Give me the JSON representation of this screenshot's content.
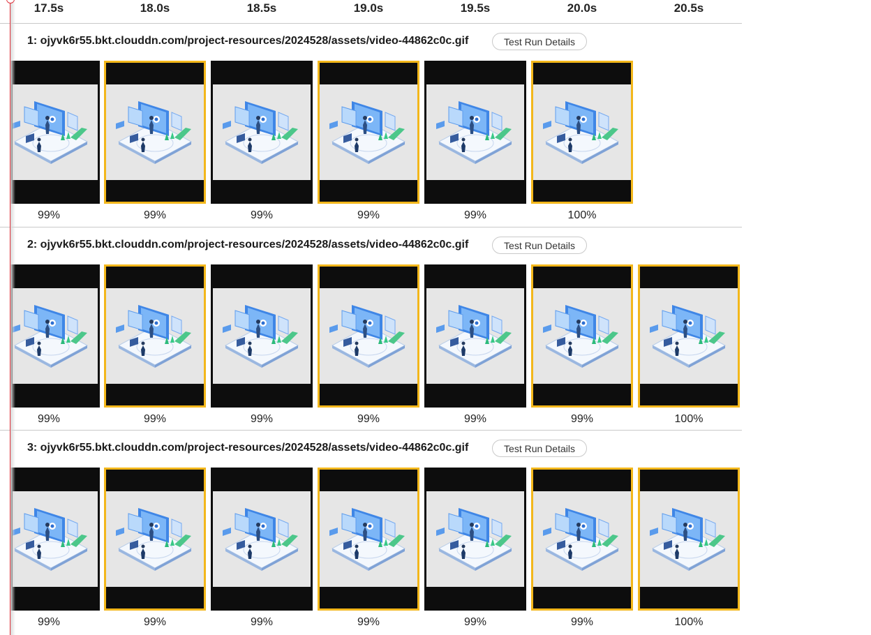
{
  "time_header": {
    "ticks": [
      "17.5s",
      "18.0s",
      "18.5s",
      "19.0s",
      "19.5s",
      "20.0s",
      "20.5s"
    ]
  },
  "runs": [
    {
      "title": "1: ojyvk6r55.bkt.clouddn.com/project-resources/2024528/assets/video-44862c0c.gif",
      "details_label": "Test Run Details",
      "frames": [
        {
          "percent": "99%",
          "changed": false
        },
        {
          "percent": "99%",
          "changed": true
        },
        {
          "percent": "99%",
          "changed": false
        },
        {
          "percent": "99%",
          "changed": true
        },
        {
          "percent": "99%",
          "changed": false
        },
        {
          "percent": "100%",
          "changed": true
        }
      ]
    },
    {
      "title": "2: ojyvk6r55.bkt.clouddn.com/project-resources/2024528/assets/video-44862c0c.gif",
      "details_label": "Test Run Details",
      "frames": [
        {
          "percent": "99%",
          "changed": false
        },
        {
          "percent": "99%",
          "changed": true
        },
        {
          "percent": "99%",
          "changed": false
        },
        {
          "percent": "99%",
          "changed": true
        },
        {
          "percent": "99%",
          "changed": false
        },
        {
          "percent": "99%",
          "changed": true
        },
        {
          "percent": "100%",
          "changed": true
        }
      ]
    },
    {
      "title": "3: ojyvk6r55.bkt.clouddn.com/project-resources/2024528/assets/video-44862c0c.gif",
      "details_label": "Test Run Details",
      "frames": [
        {
          "percent": "99%",
          "changed": false
        },
        {
          "percent": "99%",
          "changed": true
        },
        {
          "percent": "99%",
          "changed": false
        },
        {
          "percent": "99%",
          "changed": true
        },
        {
          "percent": "99%",
          "changed": false
        },
        {
          "percent": "99%",
          "changed": true
        },
        {
          "percent": "100%",
          "changed": true
        }
      ]
    }
  ],
  "colors": {
    "changed_border": "#f3b71b",
    "playhead": "#e0303a",
    "frame_bg": "#0d0d0d"
  }
}
